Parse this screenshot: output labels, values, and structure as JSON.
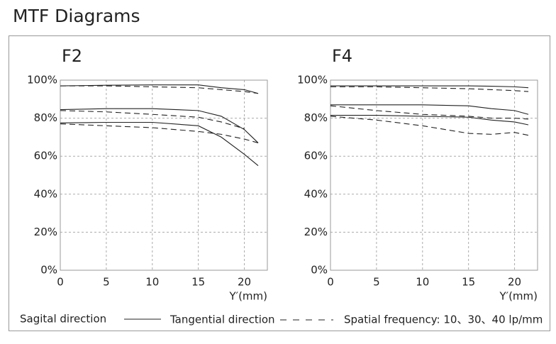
{
  "title": "MTF Diagrams",
  "legend": {
    "sagittal": "Sagital direction",
    "tangential": "Tangential direction",
    "frequency": "Spatial frequency: 10、30、40 lp/mm"
  },
  "chart_data": [
    {
      "type": "line",
      "title": "F2",
      "x_label": "Y′(mm)",
      "x": [
        0,
        5,
        10,
        15,
        17.5,
        20,
        21.5
      ],
      "xlim": [
        0,
        22.5
      ],
      "xticks": [
        0,
        5,
        10,
        15,
        20
      ],
      "ylim": [
        0,
        100
      ],
      "yticks": [
        {
          "value": 0,
          "label": "0%"
        },
        {
          "value": 20,
          "label": "20%"
        },
        {
          "value": 40,
          "label": "40%"
        },
        {
          "value": 60,
          "label": "60%"
        },
        {
          "value": 80,
          "label": "80%"
        },
        {
          "value": 100,
          "label": "100%"
        }
      ],
      "grid": true,
      "series": [
        {
          "color": "#222222",
          "style": "solid",
          "values": [
            97,
            97.3,
            97.5,
            97.5,
            96,
            95,
            93
          ]
        },
        {
          "color": "#222222",
          "style": "dashed",
          "values": [
            97,
            97,
            96.5,
            96,
            95,
            94,
            93
          ]
        },
        {
          "color": "#222222",
          "style": "solid",
          "values": [
            84.5,
            85,
            85,
            84,
            81,
            74,
            67
          ]
        },
        {
          "color": "#222222",
          "style": "dashed",
          "values": [
            84,
            83.3,
            82,
            80.5,
            78,
            74.5,
            null
          ]
        },
        {
          "color": "#222222",
          "style": "solid",
          "values": [
            77.5,
            77.8,
            77.8,
            76,
            70,
            61,
            55
          ]
        },
        {
          "color": "#222222",
          "style": "dashed",
          "values": [
            77,
            76,
            75,
            73,
            71.5,
            69,
            67
          ]
        }
      ]
    },
    {
      "type": "line",
      "title": "F4",
      "x_label": "Y′(mm)",
      "x": [
        0,
        5,
        10,
        15,
        17.5,
        20,
        21.5
      ],
      "xlim": [
        0,
        22.5
      ],
      "xticks": [
        0,
        5,
        10,
        15,
        20
      ],
      "ylim": [
        0,
        100
      ],
      "yticks": [
        {
          "value": 0,
          "label": "0%"
        },
        {
          "value": 20,
          "label": "20%"
        },
        {
          "value": 40,
          "label": "40%"
        },
        {
          "value": 60,
          "label": "60%"
        },
        {
          "value": 80,
          "label": "80%"
        },
        {
          "value": 100,
          "label": "100%"
        }
      ],
      "grid": true,
      "series": [
        {
          "color": "#222222",
          "style": "solid",
          "values": [
            97,
            97,
            97,
            97,
            96.8,
            96.5,
            96
          ]
        },
        {
          "color": "#222222",
          "style": "dashed",
          "values": [
            96.5,
            96.5,
            96,
            95.5,
            95,
            94.5,
            94
          ]
        },
        {
          "color": "#222222",
          "style": "solid",
          "values": [
            87,
            87,
            87,
            86.5,
            85,
            84,
            82
          ]
        },
        {
          "color": "#222222",
          "style": "dashed",
          "values": [
            86.5,
            84,
            82,
            81,
            80,
            80,
            79.5
          ]
        },
        {
          "color": "#222222",
          "style": "solid",
          "values": [
            81.5,
            81.5,
            81,
            80.5,
            79,
            78,
            76.5
          ]
        },
        {
          "color": "#222222",
          "style": "dashed",
          "values": [
            81,
            79,
            76,
            72,
            71.5,
            72.5,
            71
          ]
        }
      ]
    }
  ]
}
